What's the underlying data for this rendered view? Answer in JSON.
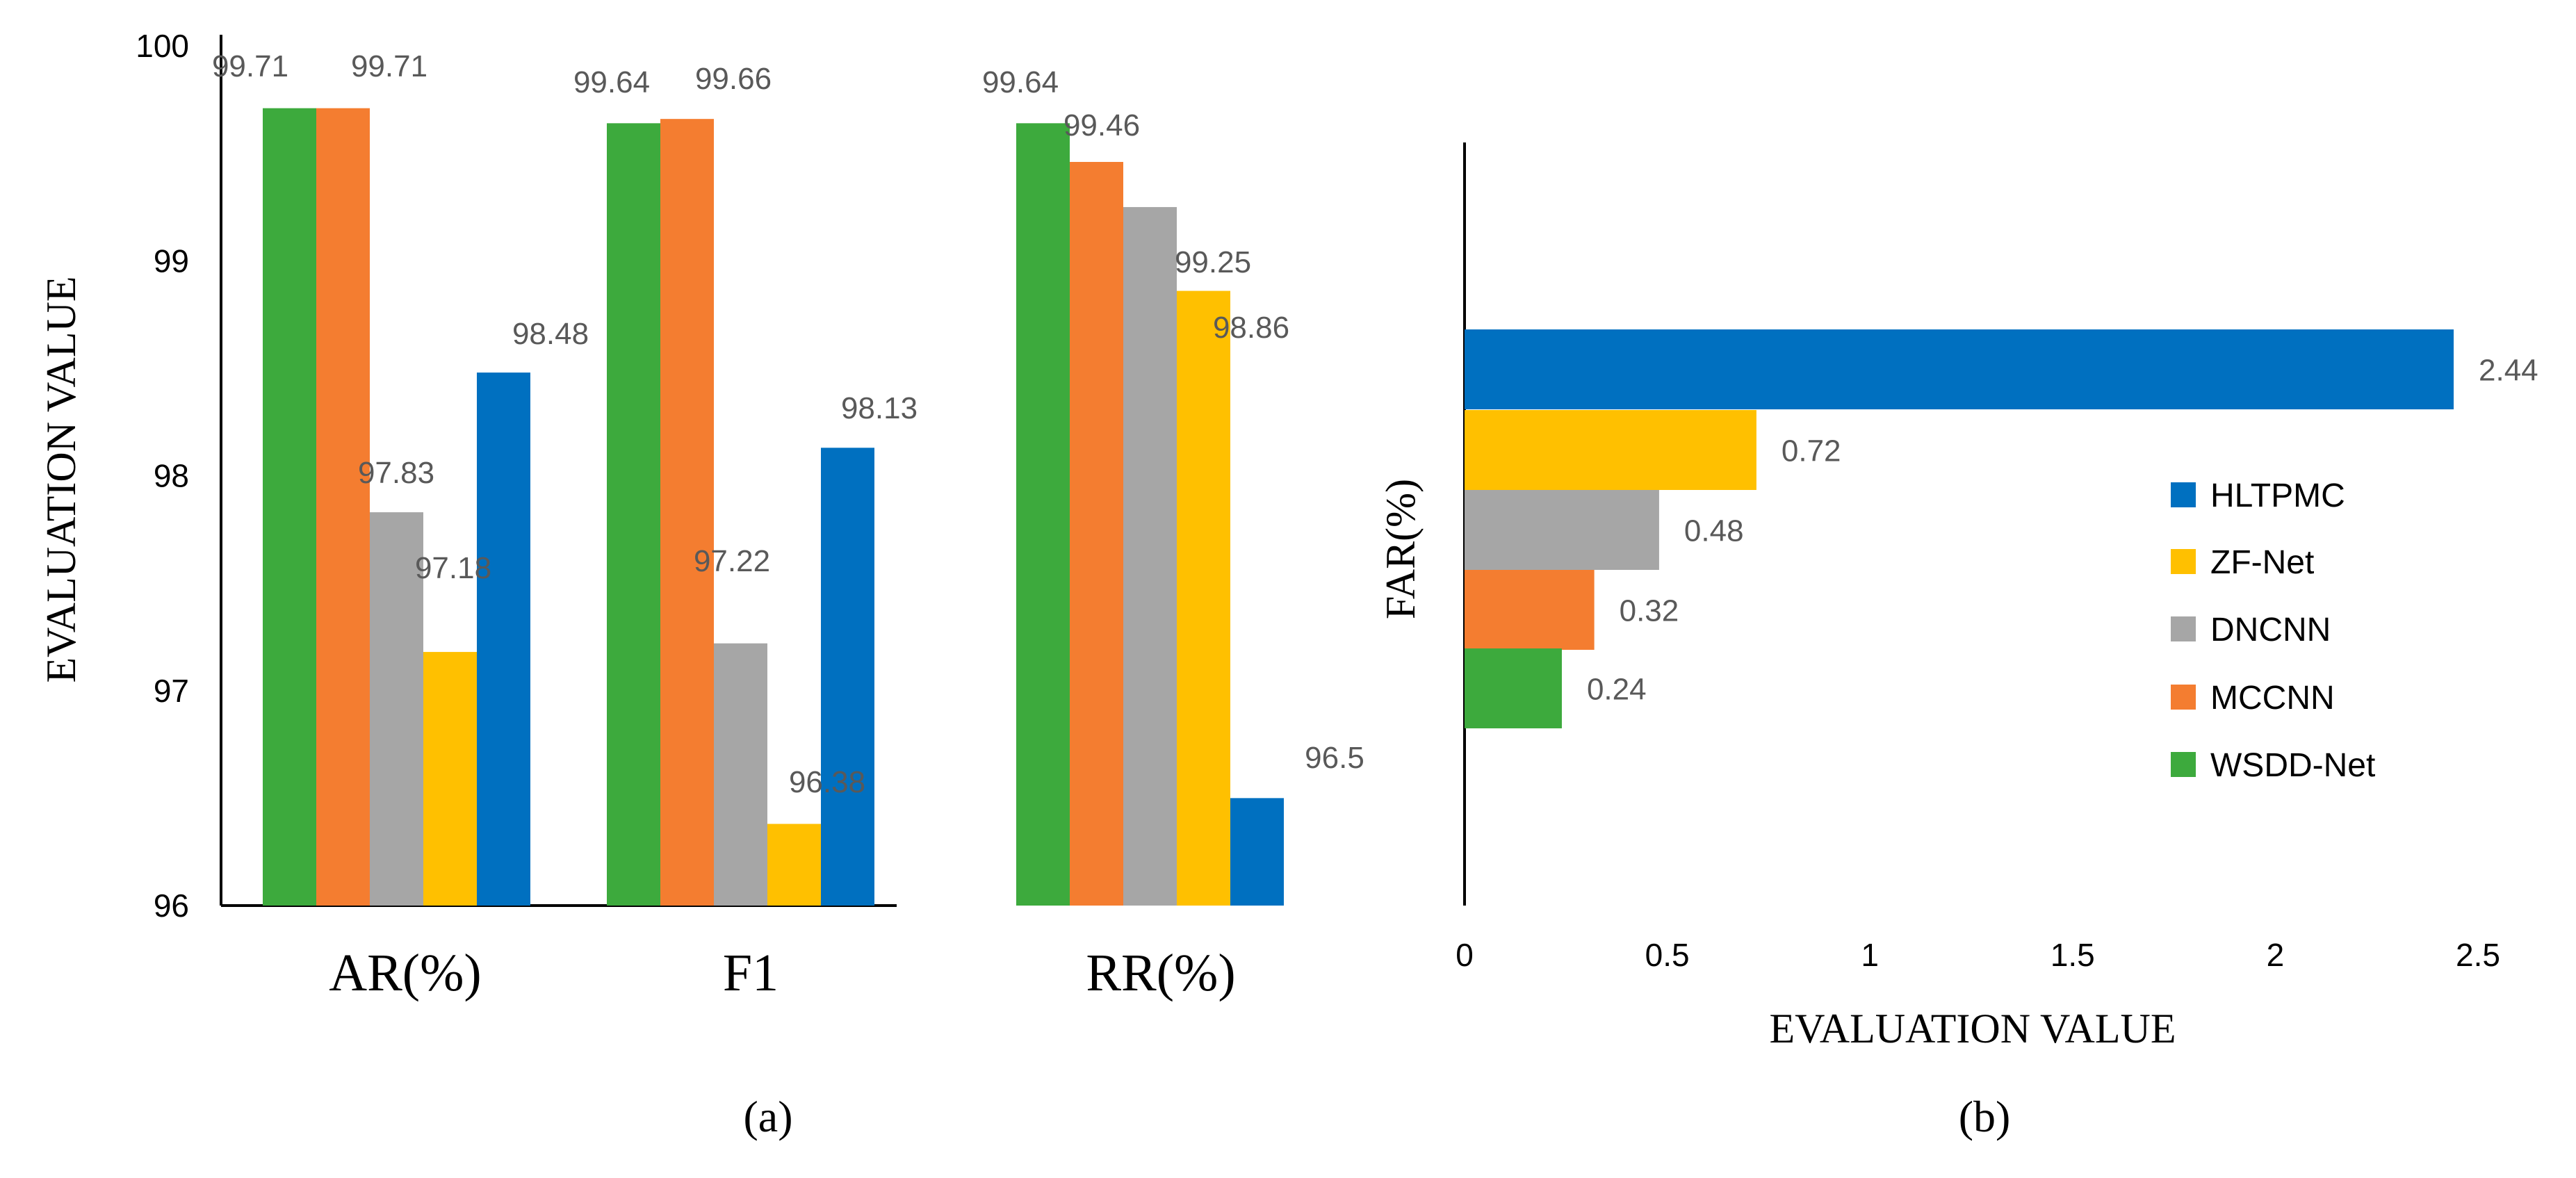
{
  "colors": {
    "WSDD-Net": "#3DAA3D",
    "MCCNN": "#F47D30",
    "DNCNN": "#A6A6A6",
    "ZF-Net": "#FFC000",
    "HLTPMC": "#0070C0"
  },
  "chart_data": [
    {
      "type": "bar",
      "orientation": "vertical",
      "panel_label": "(a)",
      "ylabel": "EVALUATION  VALUE",
      "ylim": [
        96,
        100
      ],
      "yticks": [
        "96",
        "97",
        "98",
        "99",
        "100"
      ],
      "categories": [
        "AR(%)",
        "F1",
        "RR(%)"
      ],
      "series": [
        {
          "name": "WSDD-Net",
          "values": [
            99.71,
            99.64,
            99.64
          ],
          "labels": [
            "99.71",
            "99.64",
            "99.64"
          ]
        },
        {
          "name": "MCCNN",
          "values": [
            99.71,
            99.66,
            99.46
          ],
          "labels": [
            "99.71",
            "99.66",
            "99.46"
          ]
        },
        {
          "name": "DNCNN",
          "values": [
            97.83,
            97.22,
            99.25
          ],
          "labels": [
            "97.83",
            "97.22",
            "99.25"
          ]
        },
        {
          "name": "ZF-Net",
          "values": [
            97.18,
            96.38,
            98.86
          ],
          "labels": [
            "97.18",
            "96.38",
            "98.86"
          ]
        },
        {
          "name": "HLTPMC",
          "values": [
            98.48,
            98.13,
            96.5
          ],
          "labels": [
            "98.48",
            "98.13",
            "96.5"
          ]
        }
      ]
    },
    {
      "type": "bar",
      "orientation": "horizontal",
      "panel_label": "(b)",
      "xlabel": "EVALUATION  VALUE",
      "ylabel": "FAR(%)",
      "xlim": [
        0,
        2.5
      ],
      "xticks": [
        "0",
        "0.5",
        "1",
        "1.5",
        "2",
        "2.5"
      ],
      "series": [
        {
          "name": "HLTPMC",
          "value": 2.44,
          "label": "2.44"
        },
        {
          "name": "ZF-Net",
          "value": 0.72,
          "label": "0.72"
        },
        {
          "name": "DNCNN",
          "value": 0.48,
          "label": "0.48"
        },
        {
          "name": "MCCNN",
          "value": 0.32,
          "label": "0.32"
        },
        {
          "name": "WSDD-Net",
          "value": 0.24,
          "label": "0.24"
        }
      ],
      "legend": [
        "HLTPMC",
        "ZF-Net",
        "DNCNN",
        "MCCNN",
        "WSDD-Net"
      ]
    }
  ]
}
